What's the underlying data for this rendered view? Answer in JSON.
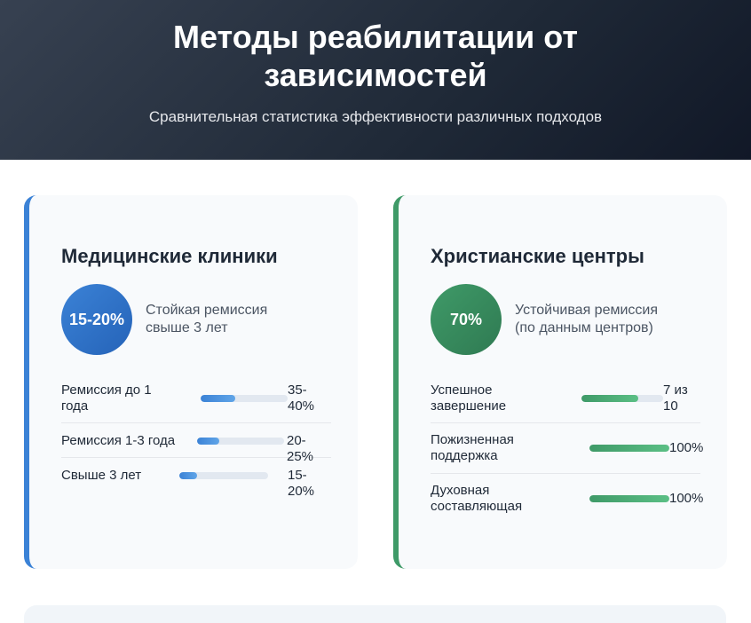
{
  "header": {
    "title_line1": "Методы реабилитации от",
    "title_line2": "зависимостей",
    "subtitle": "Сравнительная статистика эффективности различных подходов"
  },
  "medical": {
    "title": "Медицинские клиники",
    "stat_value": "15-20%",
    "stat_desc_line1": "Стойкая ремиссия",
    "stat_desc_line2": "свыше 3 лет",
    "rows": [
      {
        "label_line1": "Ремиссия до 1",
        "label_line2": "года",
        "value_line1": "35-",
        "value_line2": "40%",
        "progress_pct": 40
      },
      {
        "label_line1": "Ремиссия 1-3 года",
        "value_line1": "20-25%",
        "progress_pct": 25
      },
      {
        "label_line1": "Свыше 3 лет",
        "value_line1": "15-20%",
        "progress_pct": 20
      }
    ]
  },
  "christian": {
    "title": "Христианские центры",
    "stat_value": "70%",
    "stat_desc_line1": "Устойчивая ремиссия",
    "stat_desc_line2": "(по данным центров)",
    "rows": [
      {
        "label_line1": "Успешное",
        "label_line2": "завершение",
        "value_line1": "7 из",
        "value_line2": "10",
        "progress_pct": 70
      },
      {
        "label_line1": "Пожизненная",
        "label_line2": "поддержка",
        "value_line1": "100%",
        "progress_pct": 100
      },
      {
        "label_line1": "Духовная",
        "label_line2": "составляющая",
        "value_line1": "100%",
        "progress_pct": 100
      }
    ]
  },
  "colors": {
    "medical_accent": "#3b82d6",
    "christian_accent": "#3f9a68",
    "header_bg": "#1f2937"
  }
}
